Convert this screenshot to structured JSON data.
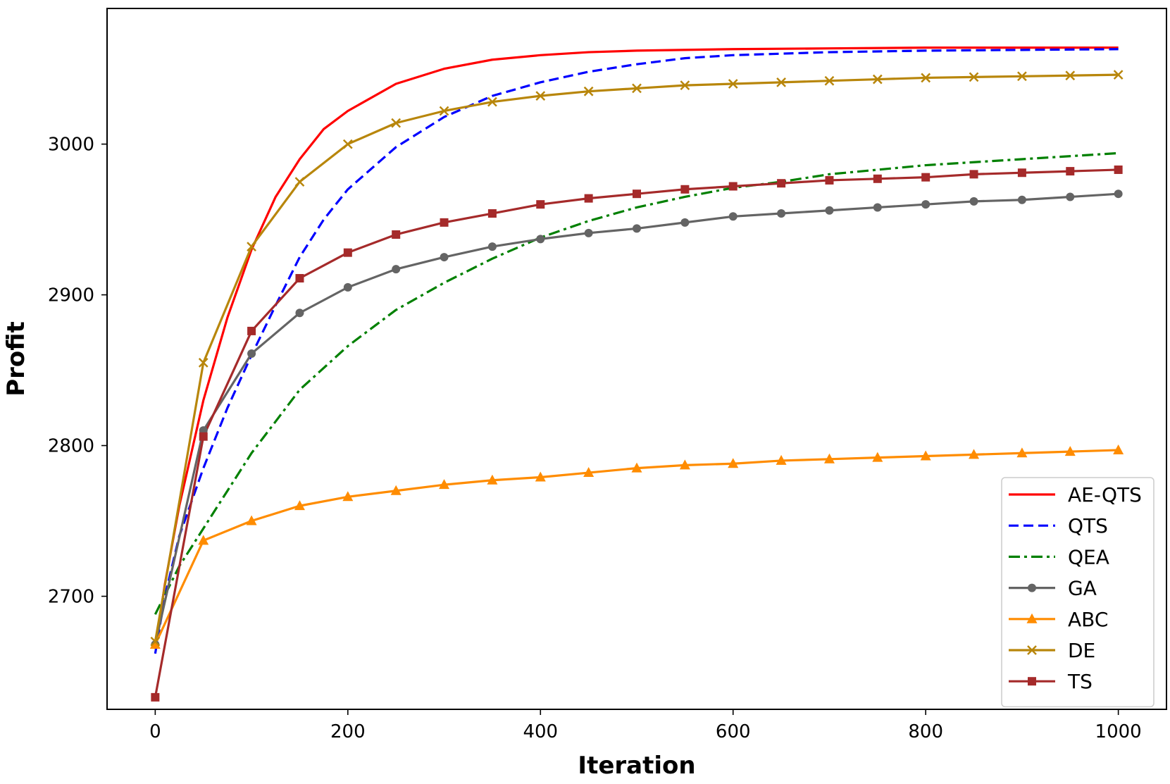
{
  "chart_data": {
    "type": "line",
    "xlabel": "Iteration",
    "ylabel": "Profit",
    "xlim": [
      -50,
      1050
    ],
    "ylim": [
      2625,
      3090
    ],
    "xticks": [
      0,
      200,
      400,
      600,
      800,
      1000
    ],
    "yticks": [
      2700,
      2800,
      2900,
      3000
    ],
    "grid": false,
    "legend_position": "lower-right",
    "series": [
      {
        "name": "AE-QTS",
        "color": "#ff0000",
        "dash": "solid",
        "marker": "none",
        "x": [
          0,
          10,
          25,
          50,
          75,
          100,
          125,
          150,
          175,
          200,
          250,
          300,
          350,
          400,
          450,
          500,
          600,
          700,
          800,
          900,
          1000
        ],
        "y": [
          2665,
          2708,
          2760,
          2830,
          2885,
          2930,
          2965,
          2990,
          3010,
          3022,
          3040,
          3050,
          3056,
          3059,
          3061,
          3062,
          3063,
          3063.5,
          3064,
          3064,
          3064
        ]
      },
      {
        "name": "QTS",
        "color": "#0000ff",
        "dash": "dashed",
        "marker": "none",
        "x": [
          0,
          10,
          25,
          50,
          75,
          100,
          125,
          150,
          175,
          200,
          250,
          300,
          350,
          400,
          450,
          500,
          550,
          600,
          700,
          800,
          900,
          1000
        ],
        "y": [
          2662,
          2700,
          2740,
          2785,
          2825,
          2860,
          2893,
          2925,
          2950,
          2970,
          2998,
          3018,
          3032,
          3041,
          3048,
          3053,
          3057,
          3059,
          3061,
          3062,
          3062.5,
          3063
        ]
      },
      {
        "name": "QEA",
        "color": "#008000",
        "dash": "dashdot",
        "marker": "none",
        "x": [
          0,
          25,
          50,
          75,
          100,
          150,
          200,
          250,
          300,
          350,
          400,
          450,
          500,
          550,
          600,
          650,
          700,
          800,
          900,
          1000
        ],
        "y": [
          2688,
          2720,
          2745,
          2770,
          2795,
          2837,
          2866,
          2890,
          2908,
          2924,
          2938,
          2949,
          2958,
          2965,
          2971,
          2975,
          2980,
          2986,
          2990,
          2994
        ]
      },
      {
        "name": "GA",
        "color": "#646464",
        "dash": "solid",
        "marker": "circle",
        "x": [
          0,
          50,
          100,
          150,
          200,
          250,
          300,
          350,
          400,
          450,
          500,
          550,
          600,
          650,
          700,
          750,
          800,
          850,
          900,
          950,
          1000
        ],
        "y": [
          2668,
          2810,
          2861,
          2888,
          2905,
          2917,
          2925,
          2932,
          2937,
          2941,
          2944,
          2948,
          2952,
          2954,
          2956,
          2958,
          2960,
          2962,
          2963,
          2965,
          2967
        ]
      },
      {
        "name": "ABC",
        "color": "#ff8c00",
        "dash": "solid",
        "marker": "triangle",
        "x": [
          0,
          50,
          100,
          150,
          200,
          250,
          300,
          350,
          400,
          450,
          500,
          550,
          600,
          650,
          700,
          750,
          800,
          850,
          900,
          950,
          1000
        ],
        "y": [
          2668,
          2737,
          2750,
          2760,
          2766,
          2770,
          2774,
          2777,
          2779,
          2782,
          2785,
          2787,
          2788,
          2790,
          2791,
          2792,
          2793,
          2794,
          2795,
          2796,
          2797
        ]
      },
      {
        "name": "DE",
        "color": "#b8860b",
        "dash": "solid",
        "marker": "x",
        "x": [
          0,
          50,
          100,
          150,
          200,
          250,
          300,
          350,
          400,
          450,
          500,
          550,
          600,
          650,
          700,
          750,
          800,
          850,
          900,
          950,
          1000
        ],
        "y": [
          2670,
          2855,
          2932,
          2975,
          3000,
          3014,
          3022,
          3028,
          3032,
          3035,
          3037,
          3039,
          3040,
          3041,
          3042,
          3043,
          3044,
          3044.5,
          3045,
          3045.5,
          3046
        ]
      },
      {
        "name": "TS",
        "color": "#a52a2a",
        "dash": "solid",
        "marker": "square",
        "x": [
          0,
          50,
          100,
          150,
          200,
          250,
          300,
          350,
          400,
          450,
          500,
          550,
          600,
          650,
          700,
          750,
          800,
          850,
          900,
          950,
          1000
        ],
        "y": [
          2633,
          2806,
          2876,
          2911,
          2928,
          2940,
          2948,
          2954,
          2960,
          2964,
          2967,
          2970,
          2972,
          2974,
          2976,
          2977,
          2978,
          2980,
          2981,
          2982,
          2983
        ]
      }
    ]
  }
}
